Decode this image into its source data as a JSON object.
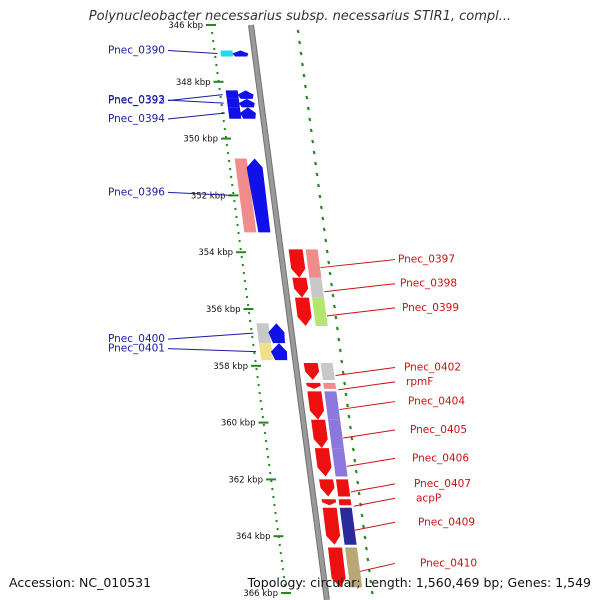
{
  "header": {
    "title": "Polynucleobacter necessarius subsp. necessarius STIR1, compl..."
  },
  "footer": {
    "accession": "Accession: NC_010531",
    "topology": "Topology: circular; Length: 1,560,469 bp; Genes: 1,549"
  },
  "colors": {
    "forward": "#1010e8",
    "forward_label": "#1a1aa8",
    "reverse": "#ee1010",
    "reverse_label": "#cc1111",
    "backbone": "#9a9a9a",
    "tick": "#228822",
    "salmon": "#f08c8c",
    "grey_cog": "#c8c8c8",
    "yellow_cog": "#f0e08c",
    "green_cog": "#b4e66e",
    "purple_cog": "#8c78dc",
    "navy_cog": "#2a2a9a",
    "olive_cog": "#b8a878",
    "cyan": "#22d8f0"
  },
  "axis": {
    "ticks": [
      {
        "kbp": 346,
        "label": "346 kbp"
      },
      {
        "kbp": 348,
        "label": "348 kbp"
      },
      {
        "kbp": 350,
        "label": "350 kbp"
      },
      {
        "kbp": 352,
        "label": "352 kbp"
      },
      {
        "kbp": 354,
        "label": "354 kbp"
      },
      {
        "kbp": 356,
        "label": "356 kbp"
      },
      {
        "kbp": 358,
        "label": "358 kbp"
      },
      {
        "kbp": 360,
        "label": "360 kbp"
      },
      {
        "kbp": 362,
        "label": "362 kbp"
      },
      {
        "kbp": 364,
        "label": "364 kbp"
      },
      {
        "kbp": 366,
        "label": "366 kbp"
      }
    ]
  },
  "genes_forward": [
    {
      "label": "Pnec_0390",
      "start_kbp": 346.9,
      "end_kbp": 347.1,
      "cog": "cyan",
      "strand": "+"
    },
    {
      "label": "Pnec_0392",
      "start_kbp": 348.3,
      "end_kbp": 348.6,
      "cog": "forward",
      "strand": "+"
    },
    {
      "label": "Pnec_0393",
      "start_kbp": 348.6,
      "end_kbp": 348.9,
      "cog": "forward",
      "strand": "+"
    },
    {
      "label": "Pnec_0394",
      "start_kbp": 348.9,
      "end_kbp": 349.3,
      "cog": "forward",
      "strand": "+"
    },
    {
      "label": "Pnec_0396",
      "start_kbp": 350.7,
      "end_kbp": 353.3,
      "cog": "salmon",
      "strand": "+"
    },
    {
      "label": "Pnec_0400",
      "start_kbp": 356.5,
      "end_kbp": 357.2,
      "cog": "grey_cog",
      "strand": "+"
    },
    {
      "label": "Pnec_0401",
      "start_kbp": 357.2,
      "end_kbp": 357.8,
      "cog": "yellow_cog",
      "strand": "+"
    }
  ],
  "genes_reverse": [
    {
      "label": "Pnec_0397",
      "start_kbp": 353.9,
      "end_kbp": 354.9,
      "cog": "salmon",
      "strand": "-"
    },
    {
      "label": "Pnec_0398",
      "start_kbp": 354.9,
      "end_kbp": 355.6,
      "cog": "grey_cog",
      "strand": "-"
    },
    {
      "label": "Pnec_0399",
      "start_kbp": 355.6,
      "end_kbp": 356.6,
      "cog": "green_cog",
      "strand": "-"
    },
    {
      "label": "Pnec_0402",
      "start_kbp": 357.9,
      "end_kbp": 358.5,
      "cog": "grey_cog",
      "strand": "-"
    },
    {
      "label": "rpmF",
      "start_kbp": 358.6,
      "end_kbp": 358.8,
      "cog": "salmon",
      "strand": "-"
    },
    {
      "label": "Pnec_0404",
      "start_kbp": 358.9,
      "end_kbp": 359.9,
      "cog": "purple_cog",
      "strand": "-"
    },
    {
      "label": "Pnec_0405",
      "start_kbp": 359.9,
      "end_kbp": 360.9,
      "cog": "purple_cog",
      "strand": "-"
    },
    {
      "label": "Pnec_0406",
      "start_kbp": 360.9,
      "end_kbp": 361.9,
      "cog": "purple_cog",
      "strand": "-"
    },
    {
      "label": "Pnec_0407",
      "start_kbp": 362.0,
      "end_kbp": 362.6,
      "cog": "reverse",
      "strand": "-"
    },
    {
      "label": "acpP",
      "start_kbp": 362.7,
      "end_kbp": 362.9,
      "cog": "reverse",
      "strand": "-"
    },
    {
      "label": "Pnec_0409",
      "start_kbp": 363.0,
      "end_kbp": 364.3,
      "cog": "navy_cog",
      "strand": "-"
    },
    {
      "label": "Pnec_0410",
      "start_kbp": 364.4,
      "end_kbp": 365.8,
      "cog": "olive_cog",
      "strand": "-"
    }
  ]
}
